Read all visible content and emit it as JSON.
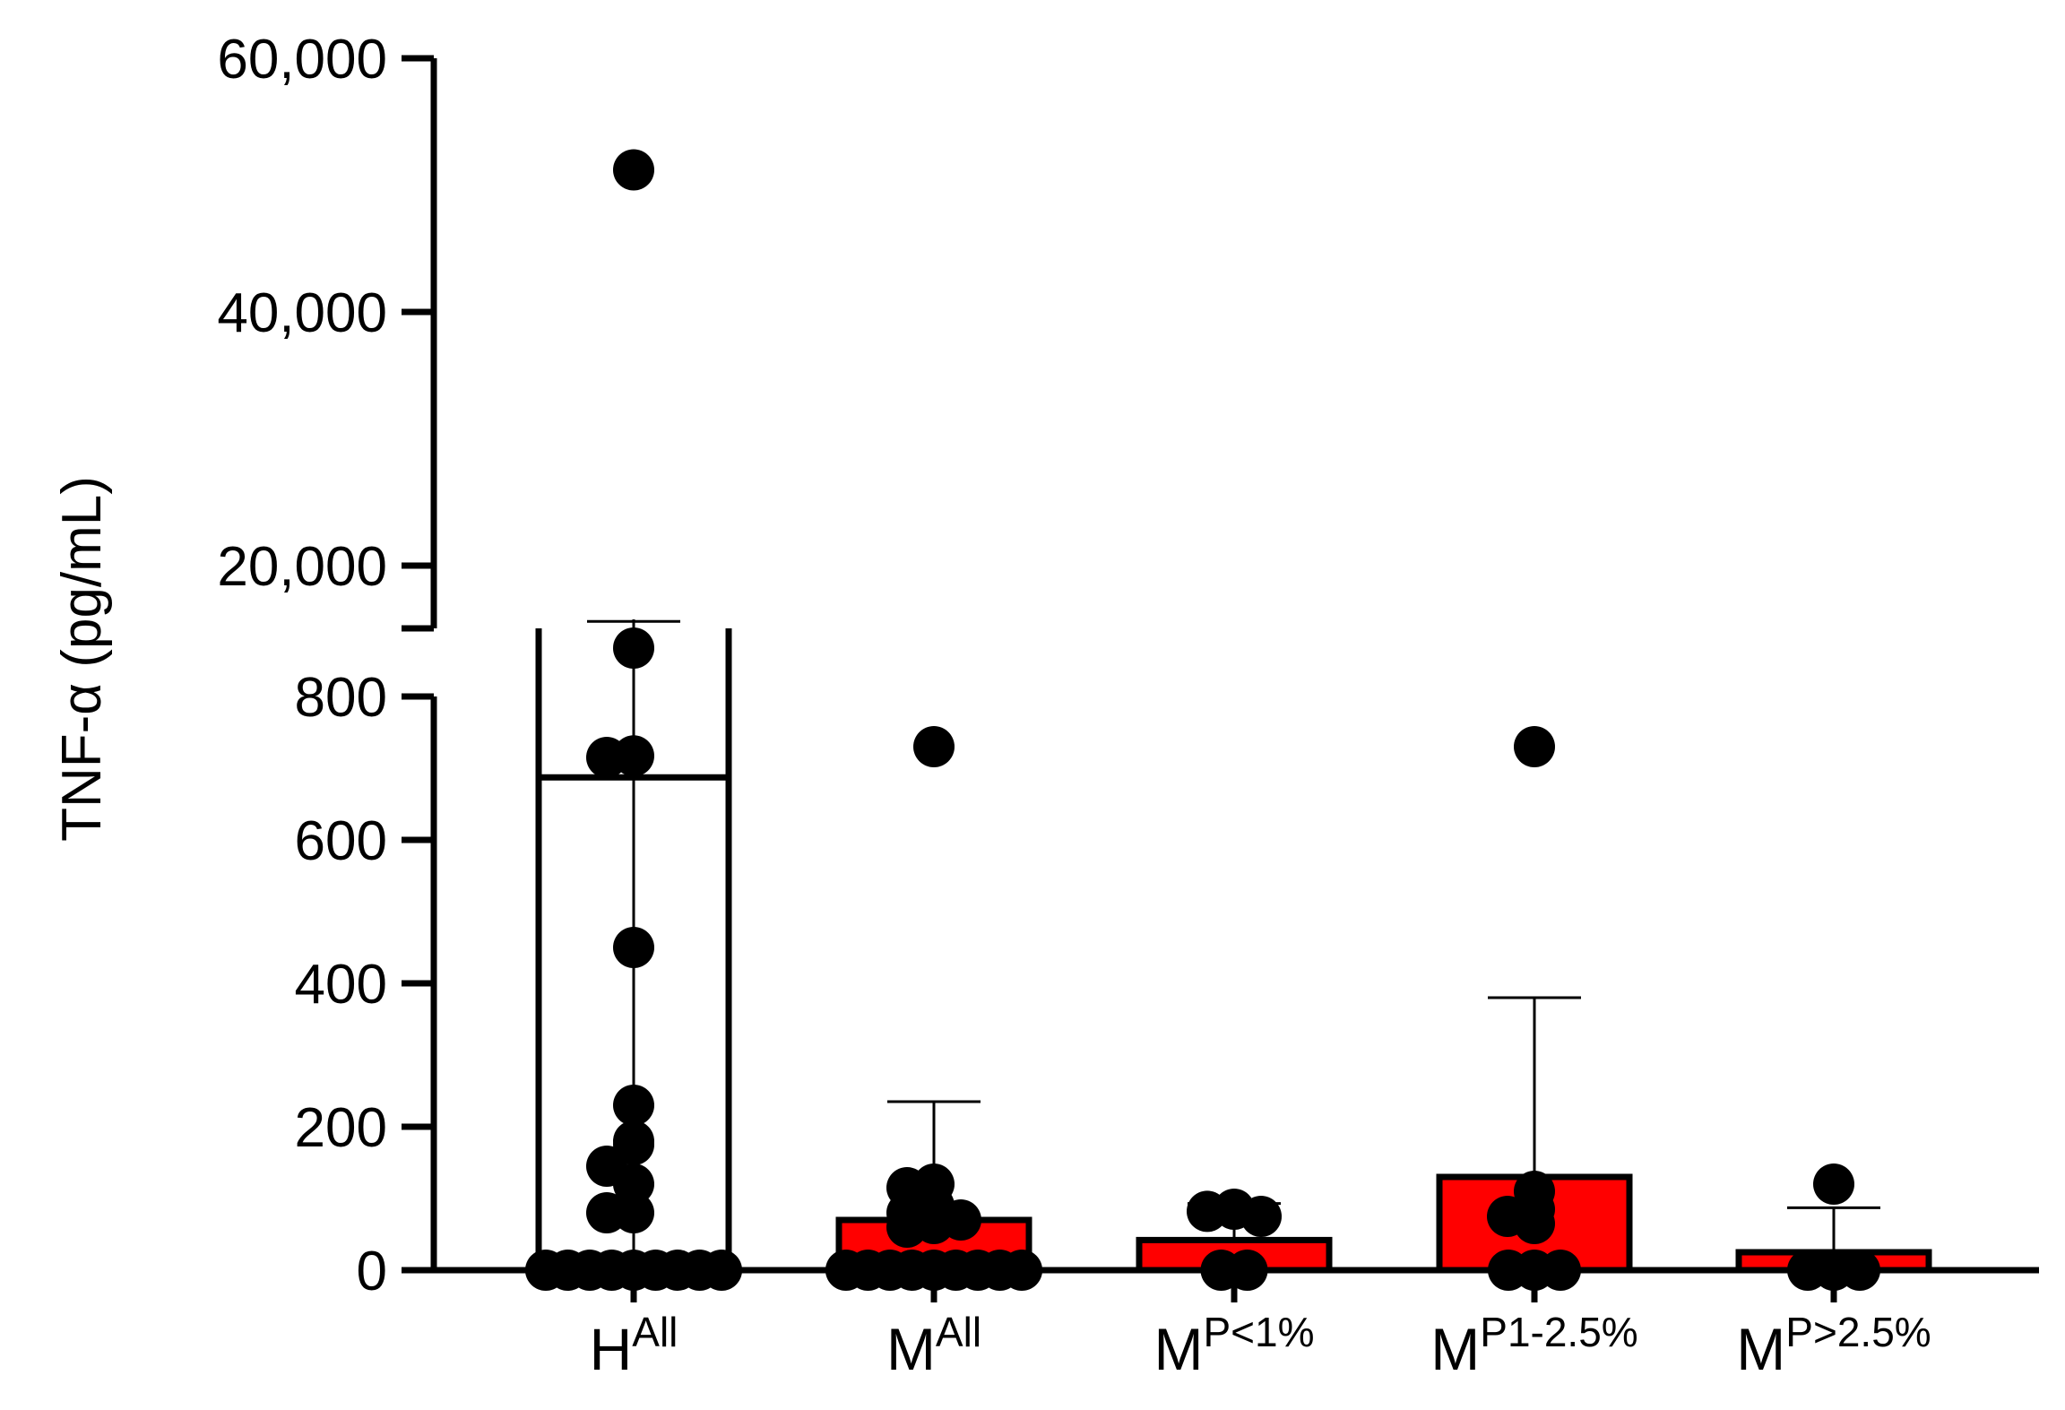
{
  "chart_data": {
    "type": "bar",
    "ylabel": "TNF-α (pg/mL)",
    "y_axis_break": true,
    "y_segments": {
      "lower": {
        "range": [
          0,
          800
        ],
        "ticks": [
          0,
          200,
          400,
          600,
          800
        ],
        "tick_labels": [
          "0",
          "200",
          "400",
          "600",
          "800"
        ]
      },
      "upper": {
        "range": [
          0,
          60000
        ],
        "ticks": [
          20000,
          40000,
          60000
        ],
        "tick_labels": [
          "20,000",
          "40,000",
          "60,000"
        ]
      }
    },
    "categories": [
      {
        "base": "H",
        "sup": "All"
      },
      {
        "base": "M",
        "sup": "All"
      },
      {
        "base": "M",
        "sup": "P<1%"
      },
      {
        "base": "M",
        "sup": "P1-2.5%"
      },
      {
        "base": "M",
        "sup": "P>2.5%"
      }
    ],
    "bar_colors": [
      "#ffffff",
      "#ff0000",
      "#ff0000",
      "#ff0000",
      "#ff0000"
    ],
    "point_color": "#000000",
    "series": [
      {
        "mean": 3300,
        "error_upper": 15600,
        "points": [
          51200,
          13500,
          5000,
          715,
          450,
          230,
          180,
          175,
          145,
          120,
          80,
          80,
          0,
          0,
          0,
          0,
          0,
          0,
          0,
          0,
          0
        ]
      },
      {
        "mean": 70,
        "error_upper": 235,
        "points": [
          730,
          120,
          115,
          90,
          80,
          70,
          65,
          60,
          0,
          0,
          0,
          0,
          0,
          0,
          0,
          0,
          0
        ]
      },
      {
        "mean": 42,
        "error_upper": 93,
        "points": [
          85,
          82,
          75,
          0,
          0
        ]
      },
      {
        "mean": 130,
        "error_upper": 380,
        "points": [
          730,
          110,
          85,
          75,
          65,
          0,
          0,
          0
        ]
      },
      {
        "mean": 25,
        "error_upper": 87,
        "points": [
          120,
          0,
          0,
          0
        ]
      }
    ]
  }
}
